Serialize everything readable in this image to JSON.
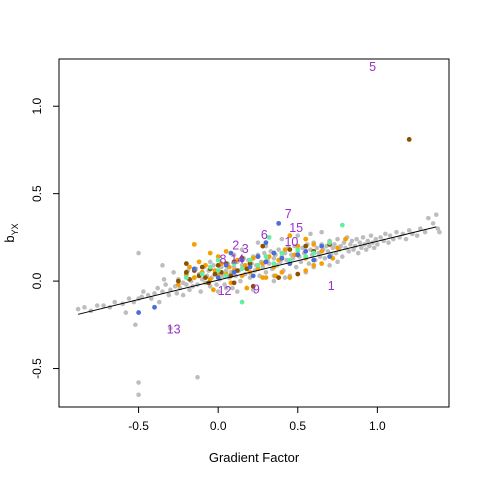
{
  "chart_data": {
    "type": "scatter",
    "title": "",
    "xlabel": "Gradient Factor",
    "ylabel_main": "b",
    "ylabel_sub": "YX",
    "xlim": [
      -1.0,
      1.45
    ],
    "ylim": [
      -0.72,
      1.27
    ],
    "xticks": [
      -0.5,
      0.0,
      0.5,
      1.0
    ],
    "yticks": [
      -0.5,
      0.0,
      0.5,
      1.0
    ],
    "xtick_labels": [
      "-0.5",
      "0.0",
      "0.5",
      "1.0"
    ],
    "ytick_labels": [
      "-0.5",
      "0.0",
      "0.5",
      "1.0"
    ],
    "grid": false,
    "legend": "none",
    "colors": {
      "background": "#bdbdbd",
      "orange": "#f5a000",
      "brown": "#8b5000",
      "blue": "#4a6fd8",
      "green": "#5ff0a6",
      "label": "#9a30c8",
      "line": "#000000"
    },
    "fit_line": {
      "x": [
        -0.88,
        1.37
      ],
      "y": [
        -0.19,
        0.31
      ]
    },
    "background_points": [
      [
        -0.88,
        -0.16
      ],
      [
        -0.84,
        -0.15
      ],
      [
        -0.8,
        -0.17
      ],
      [
        -0.76,
        -0.14
      ],
      [
        -0.72,
        -0.14
      ],
      [
        -0.68,
        -0.15
      ],
      [
        -0.65,
        -0.12
      ],
      [
        -0.6,
        -0.13
      ],
      [
        -0.58,
        -0.18
      ],
      [
        -0.56,
        -0.1
      ],
      [
        -0.53,
        -0.12
      ],
      [
        -0.52,
        -0.25
      ],
      [
        -0.5,
        -0.1
      ],
      [
        -0.48,
        -0.09
      ],
      [
        -0.47,
        -0.06
      ],
      [
        -0.5,
        0.16
      ],
      [
        -0.44,
        -0.08
      ],
      [
        -0.42,
        -0.1
      ],
      [
        -0.4,
        -0.07
      ],
      [
        -0.38,
        -0.04
      ],
      [
        -0.37,
        -0.12
      ],
      [
        -0.35,
        -0.06
      ],
      [
        -0.34,
        0.01
      ],
      [
        -0.33,
        -0.02
      ],
      [
        -0.35,
        0.09
      ],
      [
        -0.31,
        -0.08
      ],
      [
        -0.3,
        -0.05
      ],
      [
        -0.3,
        -0.27
      ],
      [
        -0.28,
        0.05
      ],
      [
        -0.27,
        -0.03
      ],
      [
        -0.26,
        -0.07
      ],
      [
        -0.25,
        0.01
      ],
      [
        -0.24,
        -0.04
      ],
      [
        -0.22,
        -0.01
      ],
      [
        -0.22,
        -0.08
      ],
      [
        -0.2,
        0.03
      ],
      [
        -0.2,
        -0.02
      ],
      [
        -0.19,
        0.06
      ],
      [
        -0.18,
        -0.05
      ],
      [
        -0.17,
        0.0
      ],
      [
        -0.16,
        -0.03
      ],
      [
        -0.15,
        0.02
      ],
      [
        -0.14,
        0.07
      ],
      [
        -0.13,
        -0.02
      ],
      [
        -0.12,
        0.04
      ],
      [
        -0.11,
        -0.06
      ],
      [
        -0.1,
        0.01
      ],
      [
        -0.1,
        0.05
      ],
      [
        -0.09,
        0.08
      ],
      [
        -0.08,
        -0.01
      ],
      [
        -0.07,
        0.03
      ],
      [
        -0.06,
        0.06
      ],
      [
        -0.05,
        -0.03
      ],
      [
        -0.04,
        0.02
      ],
      [
        -0.03,
        0.09
      ],
      [
        -0.02,
        0.04
      ],
      [
        -0.01,
        -0.02
      ],
      [
        0.0,
        0.05
      ],
      [
        0.01,
        0.01
      ],
      [
        0.02,
        0.08
      ],
      [
        0.03,
        0.03
      ],
      [
        0.04,
        -0.02
      ],
      [
        0.05,
        0.06
      ],
      [
        0.06,
        0.1
      ],
      [
        0.07,
        0.02
      ],
      [
        0.08,
        0.05
      ],
      [
        0.09,
        -0.04
      ],
      [
        0.1,
        0.08
      ],
      [
        0.11,
        0.03
      ],
      [
        0.12,
        0.11
      ],
      [
        0.13,
        0.06
      ],
      [
        0.14,
        0.0
      ],
      [
        0.15,
        0.09
      ],
      [
        0.16,
        0.13
      ],
      [
        0.17,
        0.04
      ],
      [
        0.18,
        0.07
      ],
      [
        0.19,
        0.12
      ],
      [
        0.2,
        0.02
      ],
      [
        0.21,
        0.1
      ],
      [
        0.22,
        0.14
      ],
      [
        0.23,
        0.06
      ],
      [
        0.24,
        0.09
      ],
      [
        0.25,
        0.15
      ],
      [
        0.26,
        0.03
      ],
      [
        0.27,
        0.11
      ],
      [
        0.28,
        0.08
      ],
      [
        0.29,
        0.16
      ],
      [
        0.3,
        0.05
      ],
      [
        0.31,
        0.12
      ],
      [
        0.32,
        0.1
      ],
      [
        0.33,
        0.17
      ],
      [
        0.34,
        0.07
      ],
      [
        0.35,
        0.13
      ],
      [
        0.36,
        0.15
      ],
      [
        0.37,
        0.09
      ],
      [
        0.38,
        0.18
      ],
      [
        0.39,
        0.11
      ],
      [
        0.4,
        0.14
      ],
      [
        0.41,
        0.06
      ],
      [
        0.42,
        0.16
      ],
      [
        0.43,
        0.12
      ],
      [
        0.44,
        0.19
      ],
      [
        0.45,
        0.1
      ],
      [
        0.46,
        0.15
      ],
      [
        0.47,
        0.13
      ],
      [
        0.48,
        0.2
      ],
      [
        0.49,
        0.08
      ],
      [
        0.5,
        0.17
      ],
      [
        0.51,
        0.14
      ],
      [
        0.52,
        0.11
      ],
      [
        0.53,
        0.19
      ],
      [
        0.54,
        0.16
      ],
      [
        0.55,
        0.13
      ],
      [
        0.56,
        0.21
      ],
      [
        0.57,
        0.1
      ],
      [
        0.58,
        0.18
      ],
      [
        0.59,
        0.15
      ],
      [
        0.6,
        0.22
      ],
      [
        0.61,
        0.12
      ],
      [
        0.62,
        0.19
      ],
      [
        0.63,
        0.16
      ],
      [
        0.64,
        0.14
      ],
      [
        0.65,
        0.21
      ],
      [
        0.66,
        0.18
      ],
      [
        0.67,
        0.13
      ],
      [
        0.68,
        0.2
      ],
      [
        0.69,
        0.17
      ],
      [
        0.7,
        0.23
      ],
      [
        0.71,
        0.15
      ],
      [
        0.72,
        0.19
      ],
      [
        0.73,
        0.21
      ],
      [
        0.74,
        0.16
      ],
      [
        0.75,
        0.24
      ],
      [
        0.76,
        0.18
      ],
      [
        0.77,
        0.2
      ],
      [
        0.78,
        0.14
      ],
      [
        0.79,
        0.22
      ],
      [
        0.8,
        0.19
      ],
      [
        0.81,
        0.25
      ],
      [
        0.82,
        0.17
      ],
      [
        0.83,
        0.21
      ],
      [
        0.84,
        0.23
      ],
      [
        0.85,
        0.18
      ],
      [
        0.86,
        0.2
      ],
      [
        0.87,
        0.24
      ],
      [
        0.88,
        0.16
      ],
      [
        0.89,
        0.22
      ],
      [
        0.9,
        0.19
      ],
      [
        0.91,
        0.25
      ],
      [
        0.92,
        0.21
      ],
      [
        0.93,
        0.18
      ],
      [
        0.94,
        0.23
      ],
      [
        0.95,
        0.2
      ],
      [
        0.96,
        0.26
      ],
      [
        0.97,
        0.22
      ],
      [
        0.98,
        0.19
      ],
      [
        0.99,
        0.24
      ],
      [
        1.0,
        0.21
      ],
      [
        1.02,
        0.25
      ],
      [
        1.04,
        0.23
      ],
      [
        1.05,
        0.27
      ],
      [
        1.07,
        0.22
      ],
      [
        1.08,
        0.26
      ],
      [
        1.1,
        0.24
      ],
      [
        1.12,
        0.28
      ],
      [
        1.14,
        0.25
      ],
      [
        1.16,
        0.27
      ],
      [
        1.18,
        0.24
      ],
      [
        1.2,
        0.29
      ],
      [
        1.22,
        0.27
      ],
      [
        1.25,
        0.26
      ],
      [
        1.27,
        0.3
      ],
      [
        1.3,
        0.28
      ],
      [
        1.32,
        0.36
      ],
      [
        1.35,
        0.33
      ],
      [
        1.37,
        0.38
      ],
      [
        1.38,
        0.3
      ],
      [
        1.39,
        0.28
      ],
      [
        -0.5,
        -0.58
      ],
      [
        -0.5,
        -0.65
      ],
      [
        -0.13,
        -0.55
      ],
      [
        0.05,
        -0.04
      ],
      [
        0.12,
        -0.06
      ],
      [
        0.22,
        -0.05
      ],
      [
        0.35,
        0.0
      ],
      [
        0.45,
        0.03
      ],
      [
        0.55,
        0.05
      ],
      [
        0.6,
        0.08
      ],
      [
        0.7,
        0.09
      ],
      [
        0.75,
        0.11
      ],
      [
        0.15,
        0.18
      ],
      [
        0.25,
        0.22
      ],
      [
        0.4,
        0.24
      ],
      [
        0.5,
        0.26
      ],
      [
        0.58,
        0.27
      ],
      [
        0.65,
        0.28
      ],
      [
        0.0,
        -0.06
      ],
      [
        -0.05,
        0.11
      ],
      [
        0.1,
        0.15
      ],
      [
        0.3,
        0.2
      ],
      [
        0.35,
        0.03
      ],
      [
        0.42,
        0.02
      ]
    ],
    "orange_points": [
      [
        -0.2,
        0.04
      ],
      [
        -0.15,
        0.02
      ],
      [
        -0.1,
        0.05
      ],
      [
        -0.08,
        0.09
      ],
      [
        -0.05,
        0.01
      ],
      [
        -0.02,
        0.06
      ],
      [
        0.0,
        0.03
      ],
      [
        0.02,
        0.1
      ],
      [
        0.05,
        0.04
      ],
      [
        0.07,
        0.08
      ],
      [
        0.08,
        -0.01
      ],
      [
        0.1,
        0.06
      ],
      [
        0.12,
        0.12
      ],
      [
        0.15,
        0.03
      ],
      [
        0.17,
        0.09
      ],
      [
        0.2,
        0.05
      ],
      [
        0.22,
        0.13
      ],
      [
        0.25,
        0.07
      ],
      [
        0.28,
        0.1
      ],
      [
        0.3,
        0.02
      ],
      [
        0.32,
        0.14
      ],
      [
        0.35,
        0.08
      ],
      [
        0.38,
        0.12
      ],
      [
        0.4,
        0.05
      ],
      [
        0.42,
        0.18
      ],
      [
        0.45,
        0.1
      ],
      [
        0.48,
        0.15
      ],
      [
        0.5,
        0.2
      ],
      [
        0.55,
        0.13
      ],
      [
        0.6,
        0.21
      ],
      [
        0.65,
        0.17
      ],
      [
        0.7,
        0.22
      ],
      [
        0.75,
        0.19
      ],
      [
        0.8,
        0.24
      ],
      [
        -0.12,
        0.11
      ],
      [
        -0.05,
        0.16
      ],
      [
        0.0,
        0.14
      ],
      [
        0.05,
        0.17
      ],
      [
        -0.25,
        -0.02
      ],
      [
        -0.18,
        0.08
      ],
      [
        0.18,
        -0.04
      ],
      [
        0.28,
        0.02
      ],
      [
        0.36,
        0.03
      ],
      [
        0.45,
        0.02
      ],
      [
        0.55,
        0.06
      ],
      [
        0.6,
        0.09
      ],
      [
        0.65,
        0.1
      ],
      [
        0.72,
        0.13
      ],
      [
        -0.15,
        0.21
      ],
      [
        0.45,
        0.26
      ],
      [
        0.55,
        0.24
      ],
      [
        -0.03,
        -0.05
      ]
    ],
    "brown_points": [
      [
        -0.2,
        0.05
      ],
      [
        -0.18,
        0.01
      ],
      [
        -0.15,
        0.06
      ],
      [
        -0.12,
        0.03
      ],
      [
        -0.1,
        0.08
      ],
      [
        -0.08,
        0.02
      ],
      [
        -0.05,
        0.07
      ],
      [
        -0.02,
        0.04
      ],
      [
        0.0,
        0.09
      ],
      [
        0.02,
        0.05
      ],
      [
        0.05,
        0.1
      ],
      [
        0.08,
        0.03
      ],
      [
        0.1,
        0.11
      ],
      [
        0.12,
        0.06
      ],
      [
        0.15,
        0.13
      ],
      [
        0.18,
        0.07
      ],
      [
        0.2,
        0.1
      ],
      [
        0.25,
        0.14
      ],
      [
        0.3,
        0.11
      ],
      [
        0.35,
        0.16
      ],
      [
        0.4,
        0.13
      ],
      [
        0.45,
        0.18
      ],
      [
        0.5,
        0.15
      ],
      [
        0.55,
        0.2
      ],
      [
        0.6,
        0.17
      ],
      [
        0.7,
        0.21
      ],
      [
        -0.25,
        0.0
      ],
      [
        0.22,
        -0.03
      ],
      [
        0.38,
        0.02
      ],
      [
        0.5,
        0.04
      ],
      [
        -0.2,
        0.1
      ],
      [
        0.1,
        -0.01
      ],
      [
        0.28,
        0.2
      ],
      [
        1.2,
        0.81
      ],
      [
        -0.06,
        -0.01
      ]
    ],
    "blue_points": [
      [
        -0.5,
        -0.18
      ],
      [
        -0.4,
        -0.15
      ],
      [
        -0.15,
        0.07
      ],
      [
        0.0,
        0.02
      ],
      [
        0.05,
        0.09
      ],
      [
        0.1,
        0.05
      ],
      [
        0.15,
        0.12
      ],
      [
        0.2,
        0.08
      ],
      [
        0.25,
        0.14
      ],
      [
        0.3,
        0.11
      ],
      [
        0.35,
        0.16
      ],
      [
        0.4,
        0.13
      ],
      [
        0.45,
        0.1
      ],
      [
        0.5,
        0.15
      ],
      [
        0.55,
        0.17
      ],
      [
        0.65,
        0.2
      ],
      [
        0.7,
        0.14
      ],
      [
        0.08,
        0.16
      ],
      [
        0.3,
        0.22
      ],
      [
        0.38,
        0.33
      ],
      [
        0.22,
        0.03
      ],
      [
        0.6,
        0.12
      ]
    ],
    "green_points": [
      [
        -0.1,
        0.04
      ],
      [
        -0.05,
        0.08
      ],
      [
        0.0,
        0.06
      ],
      [
        0.05,
        0.03
      ],
      [
        0.1,
        0.1
      ],
      [
        0.15,
        0.07
      ],
      [
        0.2,
        0.12
      ],
      [
        0.25,
        0.09
      ],
      [
        0.3,
        0.14
      ],
      [
        0.35,
        0.1
      ],
      [
        0.4,
        0.16
      ],
      [
        0.45,
        0.12
      ],
      [
        0.5,
        0.18
      ],
      [
        0.55,
        0.14
      ],
      [
        0.6,
        0.16
      ],
      [
        0.7,
        0.22
      ],
      [
        0.78,
        0.32
      ],
      [
        0.32,
        0.25
      ],
      [
        0.15,
        -0.12
      ],
      [
        0.0,
        0.12
      ],
      [
        -0.2,
        0.02
      ]
    ],
    "labels": [
      {
        "text": "5",
        "x": 0.97,
        "y": 1.2
      },
      {
        "text": "7",
        "x": 0.44,
        "y": 0.36
      },
      {
        "text": "6",
        "x": 0.29,
        "y": 0.24
      },
      {
        "text": "15",
        "x": 0.49,
        "y": 0.28
      },
      {
        "text": "10",
        "x": 0.46,
        "y": 0.2
      },
      {
        "text": "2",
        "x": 0.11,
        "y": 0.18
      },
      {
        "text": "3",
        "x": 0.17,
        "y": 0.16
      },
      {
        "text": "8",
        "x": 0.03,
        "y": 0.1
      },
      {
        "text": "14",
        "x": 0.12,
        "y": 0.1
      },
      {
        "text": "12",
        "x": 0.04,
        "y": -0.08
      },
      {
        "text": "9",
        "x": 0.24,
        "y": -0.07
      },
      {
        "text": "1",
        "x": 0.71,
        "y": -0.05
      },
      {
        "text": "13",
        "x": -0.28,
        "y": -0.3
      }
    ]
  }
}
